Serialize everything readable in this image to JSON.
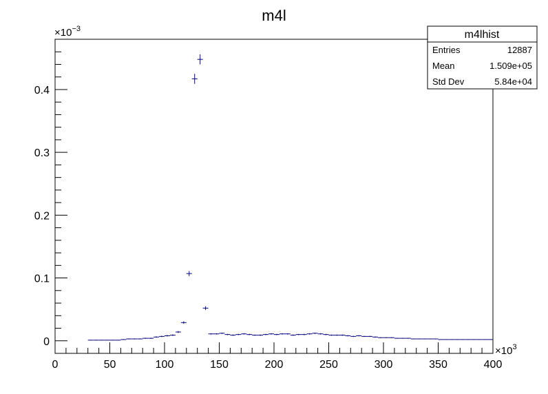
{
  "chart_data": {
    "type": "scatter",
    "title": "m4l",
    "xlabel": "",
    "ylabel": "",
    "x_multiplier_label": "×10",
    "x_multiplier_exp": "3",
    "y_multiplier_label": "×10",
    "y_multiplier_exp": "−3",
    "xlim": [
      0,
      400
    ],
    "ylim": [
      -0.02,
      0.48
    ],
    "x_ticks": [
      0,
      50,
      100,
      150,
      200,
      250,
      300,
      350,
      400
    ],
    "x_tick_labels": [
      "0",
      "50",
      "100",
      "150",
      "200",
      "250",
      "300",
      "350",
      "400"
    ],
    "y_ticks": [
      0,
      0.1,
      0.2,
      0.3,
      0.4
    ],
    "y_tick_labels": [
      "0",
      "0.1",
      "0.2",
      "0.3",
      "0.4"
    ],
    "marker_color": "#00007f",
    "series": [
      {
        "bin_half_width": 2.5,
        "x": [
          32.5,
          37.5,
          42.5,
          47.5,
          52.5,
          57.5,
          62.5,
          67.5,
          72.5,
          77.5,
          82.5,
          87.5,
          92.5,
          97.5,
          102.5,
          107.5,
          112.5,
          117.5,
          122.5,
          127.5,
          132.5,
          137.5,
          142.5,
          147.5,
          152.5,
          157.5,
          162.5,
          167.5,
          172.5,
          177.5,
          182.5,
          187.5,
          192.5,
          197.5,
          202.5,
          207.5,
          212.5,
          217.5,
          222.5,
          227.5,
          232.5,
          237.5,
          242.5,
          247.5,
          252.5,
          257.5,
          262.5,
          267.5,
          272.5,
          277.5,
          282.5,
          287.5,
          292.5,
          297.5,
          302.5,
          307.5,
          312.5,
          317.5,
          322.5,
          327.5,
          332.5,
          337.5,
          342.5,
          347.5,
          352.5,
          357.5,
          362.5,
          367.5,
          372.5,
          377.5,
          382.5,
          387.5,
          392.5,
          397.5
        ],
        "y": [
          0.001,
          0.001,
          0.001,
          0.001,
          0.001,
          0.001,
          0.002,
          0.003,
          0.003,
          0.003,
          0.004,
          0.004,
          0.006,
          0.007,
          0.008,
          0.009,
          0.014,
          0.029,
          0.107,
          0.417,
          0.448,
          0.052,
          0.011,
          0.011,
          0.012,
          0.01,
          0.009,
          0.01,
          0.011,
          0.01,
          0.009,
          0.009,
          0.01,
          0.011,
          0.01,
          0.011,
          0.011,
          0.009,
          0.01,
          0.01,
          0.011,
          0.012,
          0.011,
          0.01,
          0.009,
          0.009,
          0.009,
          0.008,
          0.007,
          0.008,
          0.007,
          0.007,
          0.006,
          0.005,
          0.005,
          0.005,
          0.004,
          0.004,
          0.004,
          0.003,
          0.003,
          0.003,
          0.003,
          0.003,
          0.002,
          0.002,
          0.002,
          0.002,
          0.002,
          0.002,
          0.002,
          0.002,
          0.002,
          0.002
        ],
        "y_err": [
          0.0005,
          0.0005,
          0.0005,
          0.0005,
          0.0005,
          0.0005,
          0.0006,
          0.0007,
          0.0007,
          0.0007,
          0.0008,
          0.0008,
          0.001,
          0.001,
          0.0011,
          0.0012,
          0.0015,
          0.002,
          0.004,
          0.008,
          0.008,
          0.003,
          0.001,
          0.001,
          0.001,
          0.001,
          0.001,
          0.001,
          0.001,
          0.001,
          0.001,
          0.001,
          0.001,
          0.001,
          0.001,
          0.001,
          0.001,
          0.001,
          0.001,
          0.001,
          0.001,
          0.001,
          0.001,
          0.001,
          0.001,
          0.001,
          0.001,
          0.0009,
          0.0008,
          0.0009,
          0.0008,
          0.0008,
          0.0008,
          0.0007,
          0.0007,
          0.0007,
          0.0006,
          0.0006,
          0.0006,
          0.0006,
          0.0006,
          0.0006,
          0.0006,
          0.0006,
          0.0005,
          0.0005,
          0.0005,
          0.0005,
          0.0005,
          0.0005,
          0.0005,
          0.0005,
          0.0005,
          0.0005
        ]
      }
    ]
  },
  "stats_box": {
    "title": "m4lhist",
    "rows": [
      {
        "label": "Entries",
        "value": "12887"
      },
      {
        "label": "Mean",
        "value": "1.509e+05"
      },
      {
        "label": "Std Dev",
        "value": "5.84e+04"
      }
    ]
  }
}
